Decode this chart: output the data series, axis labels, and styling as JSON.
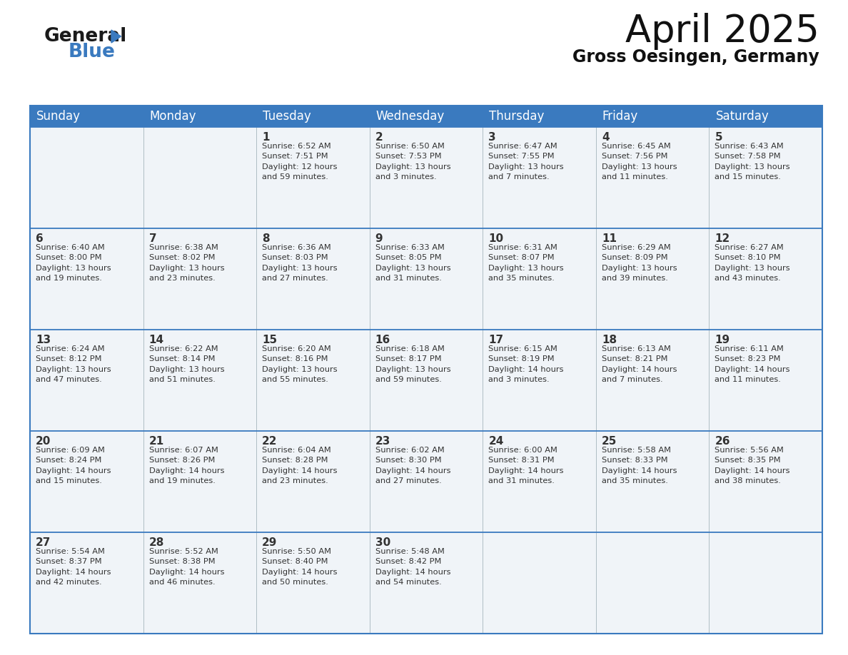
{
  "title": "April 2025",
  "subtitle": "Gross Oesingen, Germany",
  "header_color": "#3a7abf",
  "header_text_color": "#ffffff",
  "cell_bg_color": "#f0f4f8",
  "border_color": "#3a7abf",
  "row_border_color": "#3a7abf",
  "text_color": "#333333",
  "days_of_week": [
    "Sunday",
    "Monday",
    "Tuesday",
    "Wednesday",
    "Thursday",
    "Friday",
    "Saturday"
  ],
  "weeks": [
    [
      {
        "day": "",
        "info": ""
      },
      {
        "day": "",
        "info": ""
      },
      {
        "day": "1",
        "info": "Sunrise: 6:52 AM\nSunset: 7:51 PM\nDaylight: 12 hours\nand 59 minutes."
      },
      {
        "day": "2",
        "info": "Sunrise: 6:50 AM\nSunset: 7:53 PM\nDaylight: 13 hours\nand 3 minutes."
      },
      {
        "day": "3",
        "info": "Sunrise: 6:47 AM\nSunset: 7:55 PM\nDaylight: 13 hours\nand 7 minutes."
      },
      {
        "day": "4",
        "info": "Sunrise: 6:45 AM\nSunset: 7:56 PM\nDaylight: 13 hours\nand 11 minutes."
      },
      {
        "day": "5",
        "info": "Sunrise: 6:43 AM\nSunset: 7:58 PM\nDaylight: 13 hours\nand 15 minutes."
      }
    ],
    [
      {
        "day": "6",
        "info": "Sunrise: 6:40 AM\nSunset: 8:00 PM\nDaylight: 13 hours\nand 19 minutes."
      },
      {
        "day": "7",
        "info": "Sunrise: 6:38 AM\nSunset: 8:02 PM\nDaylight: 13 hours\nand 23 minutes."
      },
      {
        "day": "8",
        "info": "Sunrise: 6:36 AM\nSunset: 8:03 PM\nDaylight: 13 hours\nand 27 minutes."
      },
      {
        "day": "9",
        "info": "Sunrise: 6:33 AM\nSunset: 8:05 PM\nDaylight: 13 hours\nand 31 minutes."
      },
      {
        "day": "10",
        "info": "Sunrise: 6:31 AM\nSunset: 8:07 PM\nDaylight: 13 hours\nand 35 minutes."
      },
      {
        "day": "11",
        "info": "Sunrise: 6:29 AM\nSunset: 8:09 PM\nDaylight: 13 hours\nand 39 minutes."
      },
      {
        "day": "12",
        "info": "Sunrise: 6:27 AM\nSunset: 8:10 PM\nDaylight: 13 hours\nand 43 minutes."
      }
    ],
    [
      {
        "day": "13",
        "info": "Sunrise: 6:24 AM\nSunset: 8:12 PM\nDaylight: 13 hours\nand 47 minutes."
      },
      {
        "day": "14",
        "info": "Sunrise: 6:22 AM\nSunset: 8:14 PM\nDaylight: 13 hours\nand 51 minutes."
      },
      {
        "day": "15",
        "info": "Sunrise: 6:20 AM\nSunset: 8:16 PM\nDaylight: 13 hours\nand 55 minutes."
      },
      {
        "day": "16",
        "info": "Sunrise: 6:18 AM\nSunset: 8:17 PM\nDaylight: 13 hours\nand 59 minutes."
      },
      {
        "day": "17",
        "info": "Sunrise: 6:15 AM\nSunset: 8:19 PM\nDaylight: 14 hours\nand 3 minutes."
      },
      {
        "day": "18",
        "info": "Sunrise: 6:13 AM\nSunset: 8:21 PM\nDaylight: 14 hours\nand 7 minutes."
      },
      {
        "day": "19",
        "info": "Sunrise: 6:11 AM\nSunset: 8:23 PM\nDaylight: 14 hours\nand 11 minutes."
      }
    ],
    [
      {
        "day": "20",
        "info": "Sunrise: 6:09 AM\nSunset: 8:24 PM\nDaylight: 14 hours\nand 15 minutes."
      },
      {
        "day": "21",
        "info": "Sunrise: 6:07 AM\nSunset: 8:26 PM\nDaylight: 14 hours\nand 19 minutes."
      },
      {
        "day": "22",
        "info": "Sunrise: 6:04 AM\nSunset: 8:28 PM\nDaylight: 14 hours\nand 23 minutes."
      },
      {
        "day": "23",
        "info": "Sunrise: 6:02 AM\nSunset: 8:30 PM\nDaylight: 14 hours\nand 27 minutes."
      },
      {
        "day": "24",
        "info": "Sunrise: 6:00 AM\nSunset: 8:31 PM\nDaylight: 14 hours\nand 31 minutes."
      },
      {
        "day": "25",
        "info": "Sunrise: 5:58 AM\nSunset: 8:33 PM\nDaylight: 14 hours\nand 35 minutes."
      },
      {
        "day": "26",
        "info": "Sunrise: 5:56 AM\nSunset: 8:35 PM\nDaylight: 14 hours\nand 38 minutes."
      }
    ],
    [
      {
        "day": "27",
        "info": "Sunrise: 5:54 AM\nSunset: 8:37 PM\nDaylight: 14 hours\nand 42 minutes."
      },
      {
        "day": "28",
        "info": "Sunrise: 5:52 AM\nSunset: 8:38 PM\nDaylight: 14 hours\nand 46 minutes."
      },
      {
        "day": "29",
        "info": "Sunrise: 5:50 AM\nSunset: 8:40 PM\nDaylight: 14 hours\nand 50 minutes."
      },
      {
        "day": "30",
        "info": "Sunrise: 5:48 AM\nSunset: 8:42 PM\nDaylight: 14 hours\nand 54 minutes."
      },
      {
        "day": "",
        "info": ""
      },
      {
        "day": "",
        "info": ""
      },
      {
        "day": "",
        "info": ""
      }
    ]
  ],
  "logo_color_general": "#1a1a1a",
  "logo_color_blue": "#3a7abf",
  "title_fontsize": 38,
  "subtitle_fontsize": 17,
  "header_fontsize": 12,
  "day_num_fontsize": 11,
  "info_fontsize": 8.2
}
